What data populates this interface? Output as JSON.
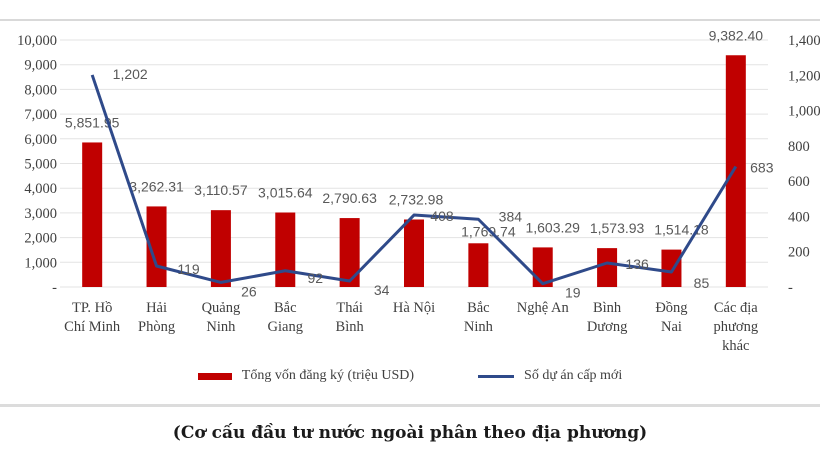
{
  "chart_data": {
    "type": "bar+line",
    "title": "",
    "caption": "(Cơ cấu đầu tư nước ngoài phân theo địa phương)",
    "categories": [
      [
        "TP. Hồ",
        "Chí Minh"
      ],
      [
        "Hải",
        "Phòng"
      ],
      [
        "Quảng",
        "Ninh"
      ],
      [
        "Bắc",
        "Giang"
      ],
      [
        "Thái",
        "Bình"
      ],
      [
        "Hà Nội"
      ],
      [
        "Bắc",
        "Ninh"
      ],
      [
        "Nghệ An"
      ],
      [
        "Bình",
        "Dương"
      ],
      [
        "Đồng",
        "Nai"
      ],
      [
        "Các địa",
        "phương",
        "khác"
      ]
    ],
    "series": [
      {
        "name": "Tổng vốn đăng ký (triệu USD)",
        "type": "bar",
        "axis": "left",
        "color": "#c00000",
        "values": [
          5851.95,
          3262.31,
          3110.57,
          3015.64,
          2790.63,
          2732.98,
          1769.74,
          1603.29,
          1573.93,
          1514.18,
          9382.4
        ],
        "labels": [
          "5,851.95",
          "3,262.31",
          "3,110.57",
          "3,015.64",
          "2,790.63",
          "2,732.98",
          "1,769.74",
          "1,603.29",
          "1,573.93",
          "1,514.18",
          "9,382.40"
        ]
      },
      {
        "name": "Số dự án cấp mới",
        "type": "line",
        "axis": "right",
        "color": "#2f4a8a",
        "values": [
          1202,
          119,
          26,
          92,
          34,
          408,
          384,
          19,
          136,
          85,
          683
        ],
        "labels": [
          "1,202",
          "119",
          "26",
          "92",
          "34",
          "408",
          "384",
          "19",
          "136",
          "85",
          "683"
        ]
      }
    ],
    "left_axis": {
      "ylim": [
        0,
        10000
      ],
      "ticks": [
        "-",
        "1,000",
        "2,000",
        "3,000",
        "4,000",
        "5,000",
        "6,000",
        "7,000",
        "8,000",
        "9,000",
        "10,000"
      ]
    },
    "right_axis": {
      "ylim": [
        0,
        1400
      ],
      "ticks": [
        "-",
        "200",
        "400",
        "600",
        "800",
        "1,000",
        "1,200",
        "1,400"
      ]
    },
    "grid": true,
    "legend_position": "bottom"
  },
  "legend": {
    "bar_label": "Tổng vốn đăng ký (triệu  USD)",
    "line_label": "Số dự án  cấp mới"
  }
}
